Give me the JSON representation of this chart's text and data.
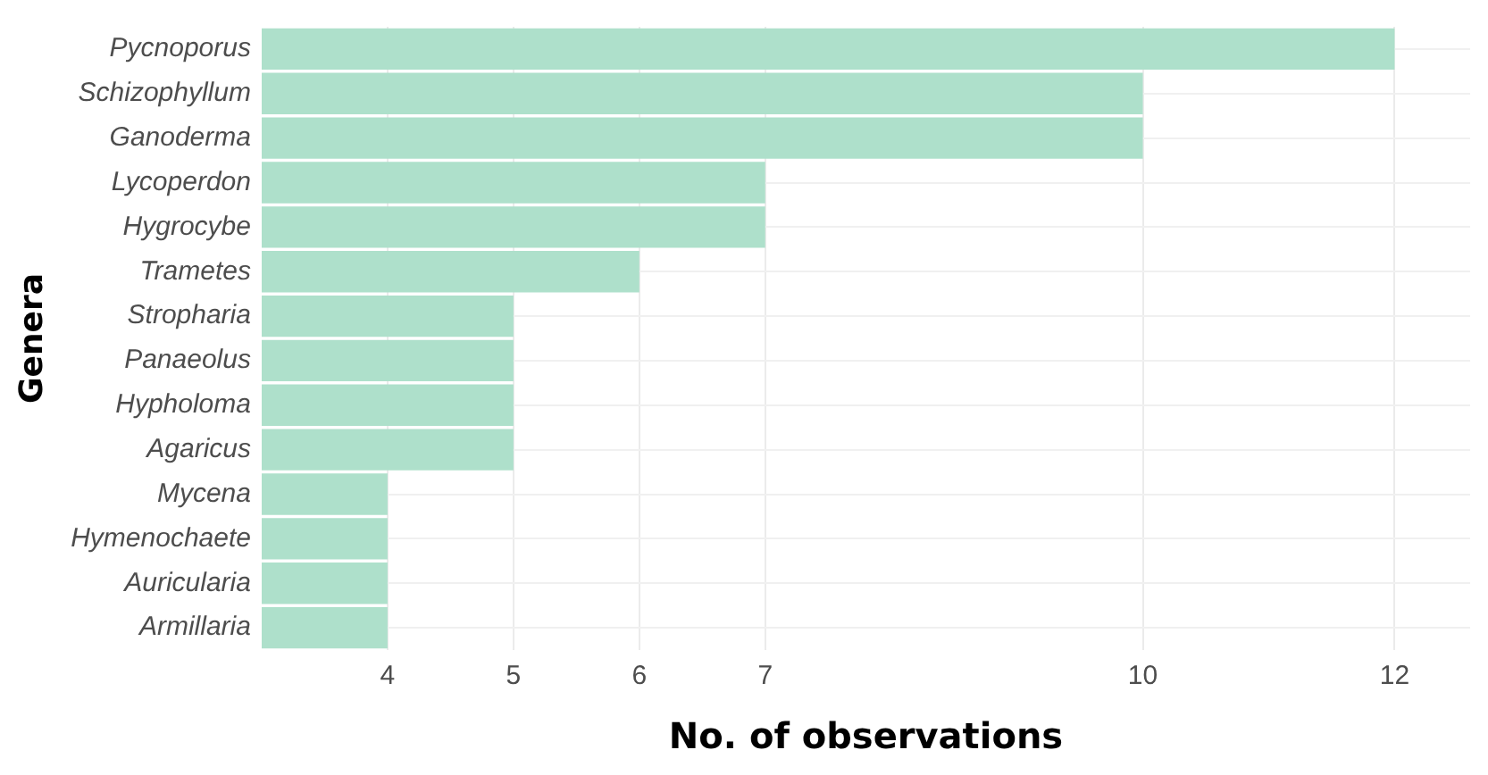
{
  "chart_data": {
    "type": "bar",
    "orientation": "horizontal",
    "xlabel": "No. of observations",
    "ylabel": "Genera",
    "categories": [
      "Pycnoporus",
      "Schizophyllum",
      "Ganoderma",
      "Lycoperdon",
      "Hygrocybe",
      "Trametes",
      "Stropharia",
      "Panaeolus",
      "Hypholoma",
      "Agaricus",
      "Mycena",
      "Hymenochaete",
      "Auricularia",
      "Armillaria"
    ],
    "values": [
      12,
      10,
      10,
      7,
      7,
      6,
      5,
      5,
      5,
      5,
      4,
      4,
      4,
      4
    ],
    "color": "#aee0cb",
    "xlim": [
      3,
      12.6
    ],
    "xticks": [
      4,
      5,
      6,
      7,
      10,
      12
    ],
    "grid": true,
    "legend": false
  }
}
